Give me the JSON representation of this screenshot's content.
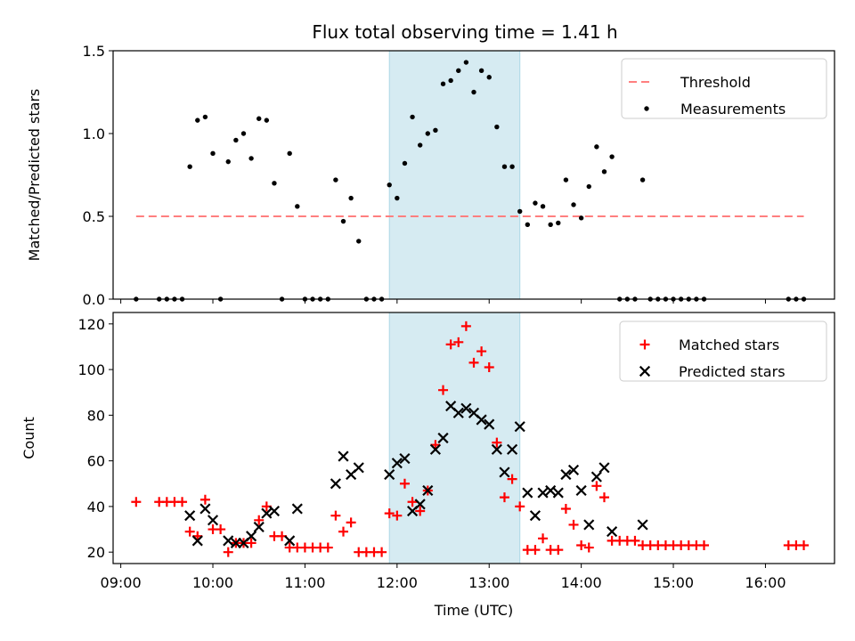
{
  "title": "Flux total observing time = 1.41 h",
  "colors": {
    "threshold": "#ff7f7f",
    "measurements": "#000000",
    "matched": "#ff0000",
    "predicted": "#000000",
    "span": "#add8e6"
  },
  "chart_data": [
    {
      "type": "scatter",
      "ylabel": "Matched/Predicted stars",
      "xlabel": "",
      "ylim": [
        0,
        1.5
      ],
      "yticks": [
        0.0,
        0.5,
        1.0,
        1.5
      ],
      "ytick_labels": [
        "0.0",
        "0.5",
        "1.0",
        "1.5"
      ],
      "legend": {
        "placement": "top-right",
        "entries": [
          "Threshold",
          "Measurements"
        ]
      },
      "shaded_span": {
        "x0": "11:55",
        "x1": "13:20"
      },
      "threshold": {
        "name": "Threshold",
        "value": 0.5,
        "x_from": "09:10",
        "x_to": "16:25"
      },
      "series": [
        {
          "name": "Measurements",
          "marker": "dot",
          "x": [
            "09:10",
            "09:25",
            "09:30",
            "09:35",
            "09:40",
            "09:45",
            "09:50",
            "09:55",
            "10:00",
            "10:05",
            "10:10",
            "10:15",
            "10:20",
            "10:25",
            "10:30",
            "10:35",
            "10:40",
            "10:45",
            "10:50",
            "10:55",
            "11:00",
            "11:05",
            "11:10",
            "11:15",
            "11:20",
            "11:25",
            "11:30",
            "11:35",
            "11:40",
            "11:45",
            "11:50",
            "11:55",
            "12:00",
            "12:05",
            "12:10",
            "12:15",
            "12:20",
            "12:25",
            "12:30",
            "12:35",
            "12:40",
            "12:45",
            "12:50",
            "12:55",
            "13:00",
            "13:05",
            "13:10",
            "13:15",
            "13:20",
            "13:25",
            "13:30",
            "13:35",
            "13:40",
            "13:45",
            "13:50",
            "13:55",
            "14:00",
            "14:05",
            "14:10",
            "14:15",
            "14:20",
            "14:25",
            "14:30",
            "14:35",
            "14:40",
            "14:45",
            "14:50",
            "14:55",
            "15:00",
            "15:05",
            "15:10",
            "15:15",
            "15:20",
            "16:15",
            "16:20",
            "16:25"
          ],
          "y": [
            0.0,
            0.0,
            0.0,
            0.0,
            0.0,
            0.8,
            1.08,
            1.1,
            0.88,
            0.0,
            0.83,
            0.96,
            1.0,
            0.85,
            1.09,
            1.08,
            0.7,
            0.0,
            0.88,
            0.56,
            0.0,
            0.0,
            0.0,
            0.0,
            0.72,
            0.47,
            0.61,
            0.35,
            0.0,
            0.0,
            0.0,
            0.69,
            0.61,
            0.82,
            1.1,
            0.93,
            1.0,
            1.02,
            1.3,
            1.32,
            1.38,
            1.43,
            1.25,
            1.38,
            1.34,
            1.04,
            0.8,
            0.8,
            0.53,
            0.45,
            0.58,
            0.56,
            0.45,
            0.46,
            0.72,
            0.57,
            0.49,
            0.68,
            0.92,
            0.77,
            0.86,
            0.0,
            0.0,
            0.0,
            0.72,
            0.0,
            0.0,
            0.0,
            0.0,
            0.0,
            0.0,
            0.0,
            0.0,
            0.0,
            0.0,
            0.0
          ]
        }
      ]
    },
    {
      "type": "scatter",
      "xlabel": "Time (UTC)",
      "ylabel": "Count",
      "ylim": [
        15,
        125
      ],
      "yticks": [
        20,
        40,
        60,
        80,
        100,
        120
      ],
      "ytick_labels": [
        "20",
        "40",
        "60",
        "80",
        "100",
        "120"
      ],
      "xlim": [
        "08:55",
        "16:45"
      ],
      "xticks": [
        "09:00",
        "10:00",
        "11:00",
        "12:00",
        "13:00",
        "14:00",
        "15:00",
        "16:00"
      ],
      "legend": {
        "placement": "top-right",
        "entries": [
          "Matched stars",
          "Predicted stars"
        ]
      },
      "shaded_span": {
        "x0": "11:55",
        "x1": "13:20"
      },
      "series": [
        {
          "name": "Matched stars",
          "marker": "plus",
          "x": [
            "09:10",
            "09:25",
            "09:30",
            "09:35",
            "09:40",
            "09:45",
            "09:50",
            "09:55",
            "10:00",
            "10:05",
            "10:10",
            "10:15",
            "10:20",
            "10:25",
            "10:30",
            "10:35",
            "10:40",
            "10:45",
            "10:50",
            "10:55",
            "11:00",
            "11:05",
            "11:10",
            "11:15",
            "11:20",
            "11:25",
            "11:30",
            "11:35",
            "11:40",
            "11:45",
            "11:50",
            "11:55",
            "12:00",
            "12:05",
            "12:10",
            "12:15",
            "12:20",
            "12:25",
            "12:30",
            "12:35",
            "12:40",
            "12:45",
            "12:50",
            "12:55",
            "13:00",
            "13:05",
            "13:10",
            "13:15",
            "13:20",
            "13:25",
            "13:30",
            "13:35",
            "13:40",
            "13:45",
            "13:50",
            "13:55",
            "14:00",
            "14:05",
            "14:10",
            "14:15",
            "14:20",
            "14:25",
            "14:30",
            "14:35",
            "14:40",
            "14:45",
            "14:50",
            "14:55",
            "15:00",
            "15:05",
            "15:10",
            "15:15",
            "15:20",
            "16:15",
            "16:20",
            "16:25"
          ],
          "y": [
            42,
            42,
            42,
            42,
            42,
            29,
            27,
            43,
            30,
            30,
            20,
            24,
            24,
            24,
            34,
            40,
            27,
            27,
            22,
            22,
            22,
            22,
            22,
            22,
            36,
            29,
            33,
            20,
            20,
            20,
            20,
            37,
            36,
            50,
            42,
            38,
            47,
            67,
            91,
            111,
            112,
            119,
            103,
            108,
            101,
            68,
            44,
            52,
            40,
            21,
            21,
            26,
            21,
            21,
            39,
            32,
            23,
            22,
            49,
            44,
            25,
            25,
            25,
            25,
            23,
            23,
            23,
            23,
            23,
            23,
            23,
            23,
            23,
            23,
            23,
            23
          ]
        },
        {
          "name": "Predicted stars",
          "marker": "x",
          "x": [
            "09:45",
            "09:50",
            "09:55",
            "10:00",
            "10:10",
            "10:15",
            "10:20",
            "10:25",
            "10:30",
            "10:35",
            "10:40",
            "10:50",
            "10:55",
            "11:20",
            "11:25",
            "11:30",
            "11:35",
            "11:55",
            "12:00",
            "12:05",
            "12:10",
            "12:15",
            "12:20",
            "12:25",
            "12:30",
            "12:35",
            "12:40",
            "12:45",
            "12:50",
            "12:55",
            "13:00",
            "13:05",
            "13:10",
            "13:15",
            "13:20",
            "13:25",
            "13:30",
            "13:35",
            "13:40",
            "13:45",
            "13:50",
            "13:55",
            "14:00",
            "14:05",
            "14:10",
            "14:15",
            "14:20",
            "14:40"
          ],
          "y": [
            36,
            25,
            39,
            34,
            25,
            24,
            24,
            27,
            31,
            37,
            38,
            25,
            39,
            50,
            62,
            54,
            57,
            54,
            59,
            61,
            38,
            41,
            47,
            65,
            70,
            84,
            81,
            83,
            81,
            78,
            76,
            65,
            55,
            65,
            75,
            46,
            36,
            46,
            47,
            46,
            54,
            56,
            47,
            32,
            53,
            57,
            29,
            32
          ]
        }
      ]
    }
  ]
}
